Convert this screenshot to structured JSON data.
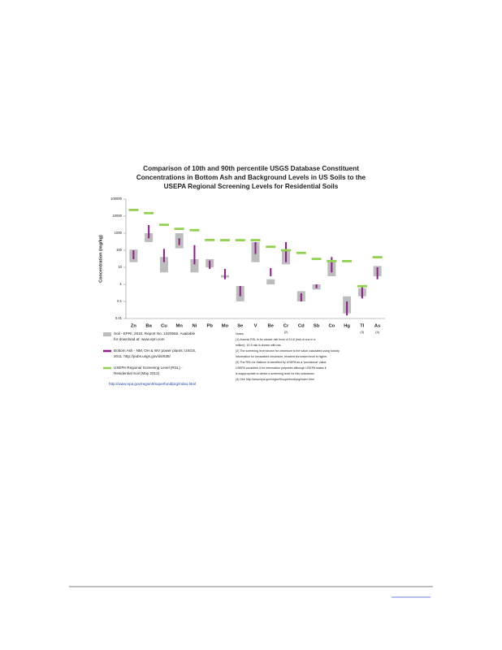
{
  "chart_data": {
    "type": "range",
    "title": [
      "Comparison of 10th and 90th percentile USGS Database Constituent",
      "Concentrations in Bottom Ash and Background Levels in US Soils to the",
      "USEPA Regional Screening Levels for Residential Soils"
    ],
    "y_label": "Concentration (mg/kg)",
    "log_scale": true,
    "ylim": [
      0.01,
      100000
    ],
    "yticks": [
      0.01,
      0.1,
      1,
      10,
      100,
      1000,
      10000,
      100000
    ],
    "categories": [
      "Zn",
      "Ba",
      "Cu",
      "Mn",
      "Ni",
      "Pb",
      "Mo",
      "Se",
      "V",
      "Be",
      "Cr",
      "Cd",
      "Sb",
      "Co",
      "Hg",
      "Tl",
      "As"
    ],
    "category_notes": [
      null,
      null,
      null,
      null,
      null,
      null,
      null,
      null,
      null,
      null,
      "(2)",
      null,
      null,
      null,
      null,
      "(3)",
      "(4)"
    ],
    "series": [
      {
        "name": [
          "Soil - EPRI, 2010. Report No. 1020556. Available",
          "for download at: www.epri.com"
        ],
        "color": "#bdbdbd",
        "mark": "box",
        "values": [
          [
            20,
            110
          ],
          [
            300,
            1000
          ],
          [
            5,
            40
          ],
          [
            130,
            1000
          ],
          [
            5,
            30
          ],
          [
            10,
            30
          ],
          [
            2.5,
            3.5
          ],
          [
            0.1,
            0.8
          ],
          [
            20,
            300
          ],
          [
            1,
            2
          ],
          [
            15,
            100
          ],
          [
            0.1,
            0.4
          ],
          [
            0.5,
            1
          ],
          [
            3,
            20
          ],
          [
            0.02,
            0.2
          ],
          [
            0.2,
            0.6
          ],
          [
            3,
            12
          ]
        ]
      },
      {
        "name": [
          "Bottom Ash - NM, OH & WV power plants; USGS,",
          "2011. http://pubs.usgs.gov/ds/635/"
        ],
        "color": "#8e1b8c",
        "mark": "line",
        "values": [
          [
            30,
            100
          ],
          [
            500,
            3000
          ],
          [
            20,
            120
          ],
          [
            200,
            500
          ],
          [
            15,
            200
          ],
          [
            8,
            25
          ],
          [
            2,
            8
          ],
          [
            0.2,
            0.8
          ],
          [
            60,
            300
          ],
          [
            3,
            9
          ],
          [
            20,
            300
          ],
          [
            0.1,
            0.3
          ],
          [
            0.6,
            1
          ],
          [
            5,
            40
          ],
          [
            0.015,
            0.1
          ],
          [
            0.15,
            0.8
          ],
          [
            2,
            10
          ]
        ]
      },
      {
        "name": [
          "USEPA Regional Screening Level (RSL) -",
          "Residential Soil (May 2012)"
        ],
        "color": "#92d050",
        "mark": "dash",
        "values": [
          23000,
          15000,
          3100,
          1800,
          1500,
          400,
          390,
          390,
          390,
          160,
          100,
          70,
          31,
          23,
          23,
          0.78,
          39
        ]
      }
    ],
    "legend_url": "http://www.epa.gov/region9/superfund/prg/index.html",
    "notes": [
      "Notes:",
      "(1) Arsenic RSL is for cancer risk level of 10-6 (risk of one in a",
      "million); 10-5 risk is shown with bar.",
      "(2) The screening level shown for chromium is the value calculated using toxicity",
      "information for hexavalent chromium; trivalent chromium level is higher.",
      "(3) The RSL for thallium is identified by USEPA as a 'provisional' value;",
      "USEPA considers it for information purposes although USEPA states it",
      "is inappropriate to derive a screening level for this substance.",
      "(4) See http://www.epa.gov/region9/superfund/prg/index.html"
    ]
  }
}
